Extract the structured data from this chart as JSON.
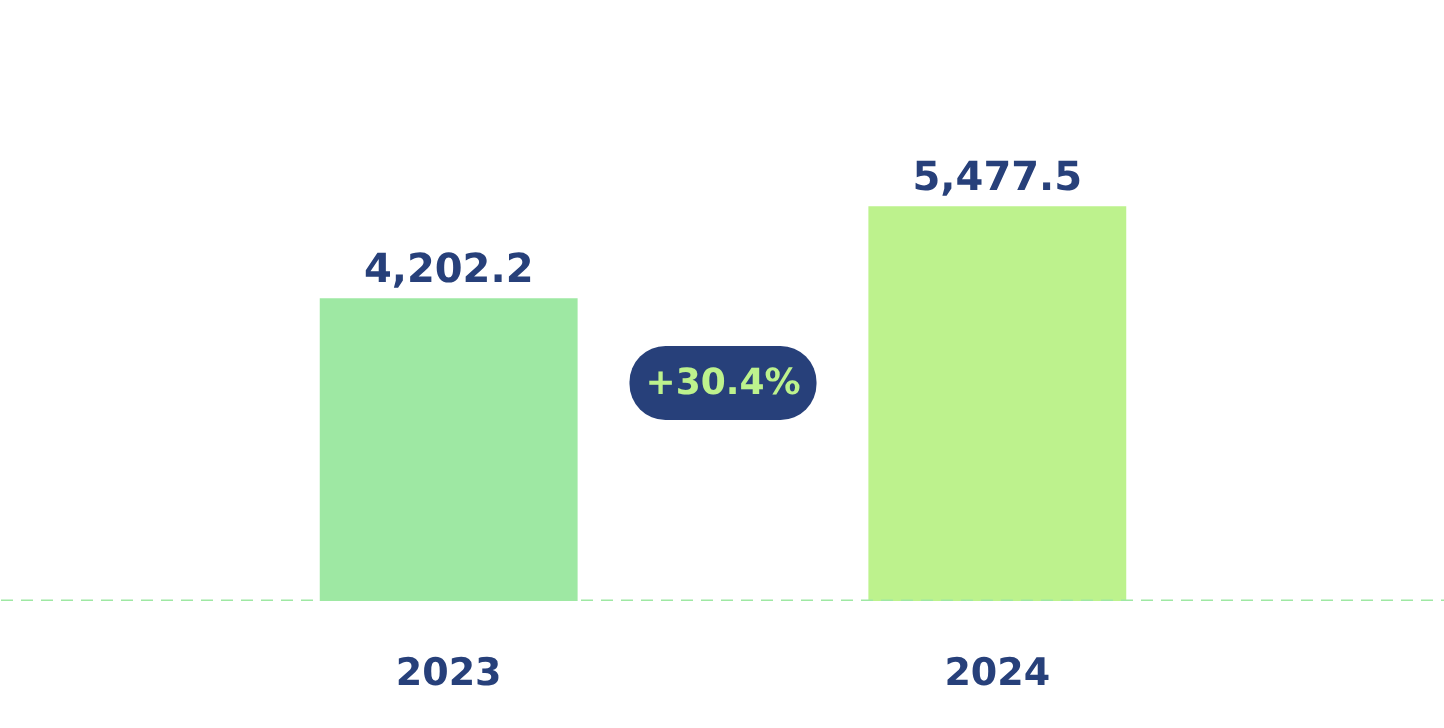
{
  "chart_data": {
    "type": "bar",
    "categories": [
      "2023",
      "2024"
    ],
    "values": [
      4202.2,
      5477.5
    ],
    "colors": [
      "#9ee8a3",
      "#bdf28d"
    ],
    "data_labels": true,
    "value_labels": [
      "4,202.2",
      "5,477.5"
    ],
    "annotations": [
      "+30.4%"
    ],
    "ref_lines": [
      {
        "axis": "y",
        "value": 0,
        "label": null,
        "color": "#9ee8a3",
        "line_style": "dashed"
      }
    ]
  }
}
